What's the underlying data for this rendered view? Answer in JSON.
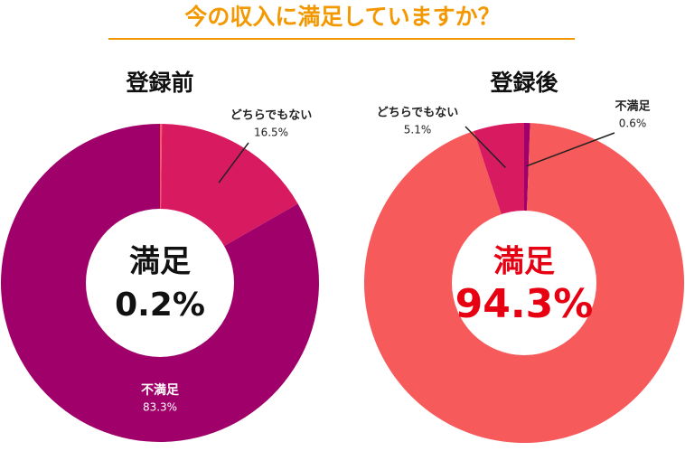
{
  "title": "今の収入に満足していますか？",
  "chart_data": [
    {
      "type": "pie",
      "title": "登録前",
      "categories": [
        "満足",
        "どちらでもない",
        "不満足"
      ],
      "values": [
        0.2,
        16.5,
        83.3
      ],
      "value_labels": [
        "0.2%",
        "16.5%",
        "83.3%"
      ],
      "colors": [
        "#f75a5a",
        "#d81b60",
        "#a0006a"
      ],
      "label_positions": [
        "center",
        "outside",
        "inside"
      ],
      "center_color": "#111111"
    },
    {
      "type": "pie",
      "title": "登録後",
      "categories": [
        "不満足",
        "満足",
        "どちらでもない"
      ],
      "values": [
        0.6,
        94.3,
        5.1
      ],
      "value_labels": [
        "0.6%",
        "94.3%",
        "5.1%"
      ],
      "colors": [
        "#a0006a",
        "#f75a5a",
        "#d81b60"
      ],
      "label_positions": [
        "outside",
        "center",
        "outside"
      ],
      "center_color": "#e60012"
    }
  ]
}
